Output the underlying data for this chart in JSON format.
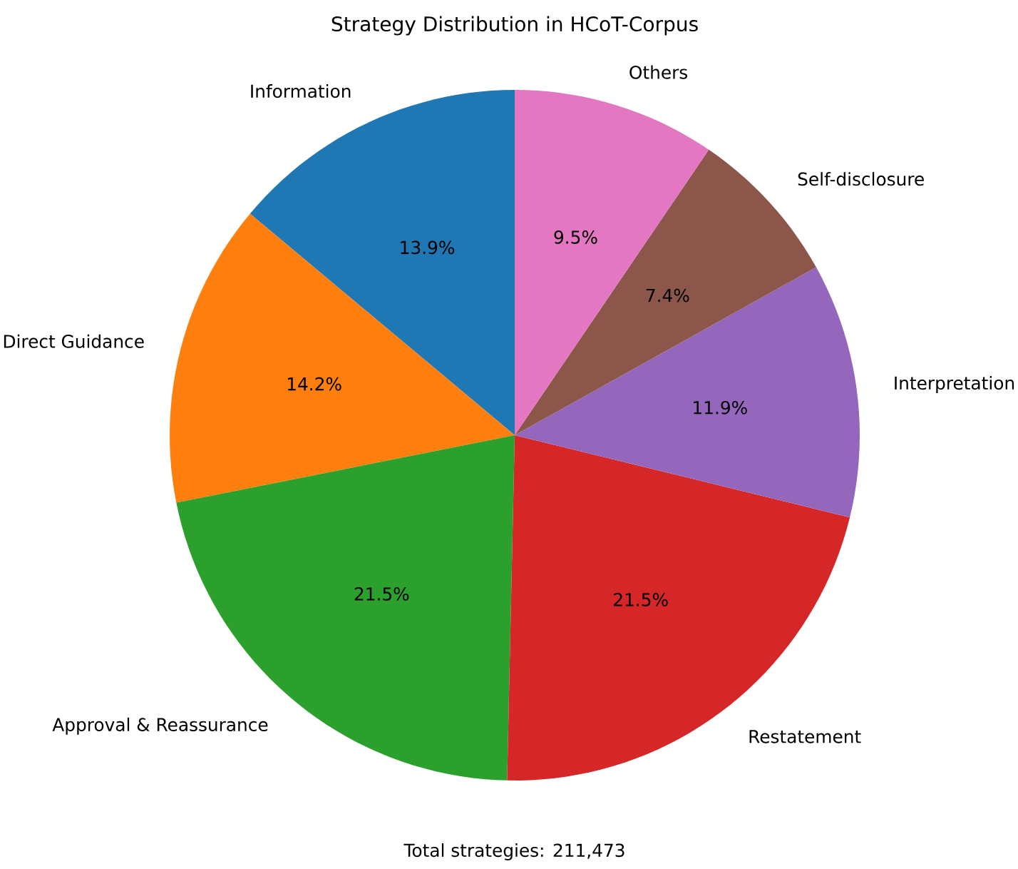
{
  "chart_data": {
    "type": "pie",
    "title": "Strategy Distribution in HCoT-Corpus",
    "categories": [
      "Information",
      "Direct Guidance",
      "Approval & Reassurance",
      "Restatement",
      "Interpretation",
      "Self-disclosure",
      "Others"
    ],
    "values": [
      13.9,
      14.2,
      21.5,
      21.5,
      11.9,
      7.4,
      9.5
    ],
    "value_labels": [
      "13.9%",
      "14.2%",
      "21.5%",
      "21.5%",
      "11.9%",
      "7.4%",
      "9.5%"
    ],
    "colors": [
      "#1f77b4",
      "#ff7f0e",
      "#2ca02c",
      "#d62728",
      "#9467bd",
      "#8c564b",
      "#e377c2"
    ],
    "annotations": [
      "Total strategies: 211,473"
    ]
  }
}
